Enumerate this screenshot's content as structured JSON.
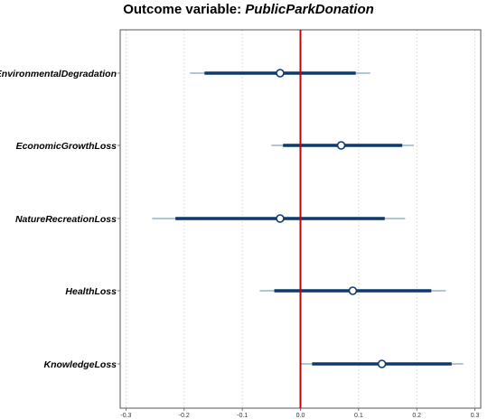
{
  "chart_data": {
    "type": "coefficient-plot",
    "title_prefix": "Outcome variable: ",
    "title_variable": "PublicParkDonation",
    "xlim": [
      -0.31,
      0.31
    ],
    "xticks": [
      -0.3,
      -0.2,
      -0.1,
      0.0,
      0.1,
      0.2,
      0.3
    ],
    "xtick_labels": [
      "-0.3",
      "-0.2",
      "-0.1",
      "0.0",
      "0.1",
      "0.2",
      "0.3"
    ],
    "grid": true,
    "reference_line": 0.0,
    "colors": {
      "estimate_line": "#0d3a6e",
      "outer_line": "#5b8fa8",
      "reference_line": "#cc0000",
      "grid": "#d9d9d9"
    },
    "series": [
      {
        "label": "EnvironmentalDegradation",
        "estimate": -0.035,
        "ci_inner": [
          -0.165,
          0.095
        ],
        "ci_outer": [
          -0.19,
          0.12
        ]
      },
      {
        "label": "EconomicGrowthLoss",
        "estimate": 0.07,
        "ci_inner": [
          -0.03,
          0.175
        ],
        "ci_outer": [
          -0.05,
          0.195
        ]
      },
      {
        "label": "NatureRecreationLoss",
        "estimate": -0.035,
        "ci_inner": [
          -0.215,
          0.145
        ],
        "ci_outer": [
          -0.255,
          0.18
        ]
      },
      {
        "label": "HealthLoss",
        "estimate": 0.09,
        "ci_inner": [
          -0.045,
          0.225
        ],
        "ci_outer": [
          -0.07,
          0.25
        ]
      },
      {
        "label": "KnowledgeLoss",
        "estimate": 0.14,
        "ci_inner": [
          0.02,
          0.26
        ],
        "ci_outer": [
          0.0,
          0.28
        ]
      }
    ]
  }
}
